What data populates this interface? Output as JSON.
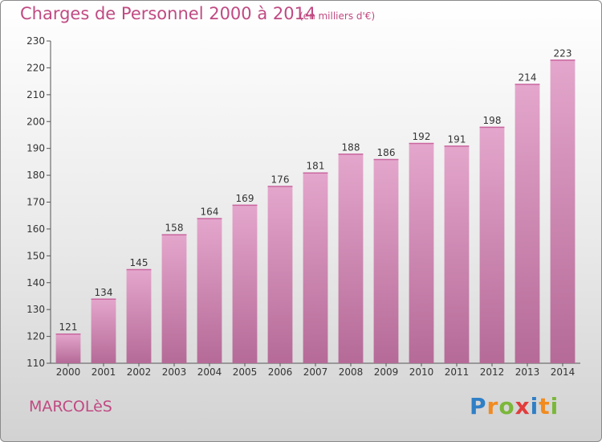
{
  "header": {
    "title": "Charges de Personnel 2000 à 2014",
    "unit": "(en milliers d'€)"
  },
  "footer": {
    "city": "MARCOLèS",
    "logo_text": "Proxiti"
  },
  "colors": {
    "bar_top": "#e4a6cc",
    "bar_bottom": "#b56a97",
    "text_accent": "#c04a82",
    "logo": [
      "#2f7fc6",
      "#f18b1f",
      "#7bb73a",
      "#e23c3c",
      "#2f7fc6",
      "#f18b1f",
      "#7bb73a"
    ]
  },
  "chart_data": {
    "type": "bar",
    "title": "Charges de Personnel 2000 à 2014",
    "subtitle": "(en milliers d'€)",
    "categories": [
      "2000",
      "2001",
      "2002",
      "2003",
      "2004",
      "2005",
      "2006",
      "2007",
      "2008",
      "2009",
      "2010",
      "2011",
      "2012",
      "2013",
      "2014"
    ],
    "values": [
      121,
      134,
      145,
      158,
      164,
      169,
      176,
      181,
      188,
      186,
      192,
      191,
      198,
      214,
      223
    ],
    "ylim": [
      110,
      230
    ],
    "yticks": [
      110,
      120,
      130,
      140,
      150,
      160,
      170,
      180,
      190,
      200,
      210,
      220,
      230
    ],
    "grid": false,
    "data_labels": true
  }
}
